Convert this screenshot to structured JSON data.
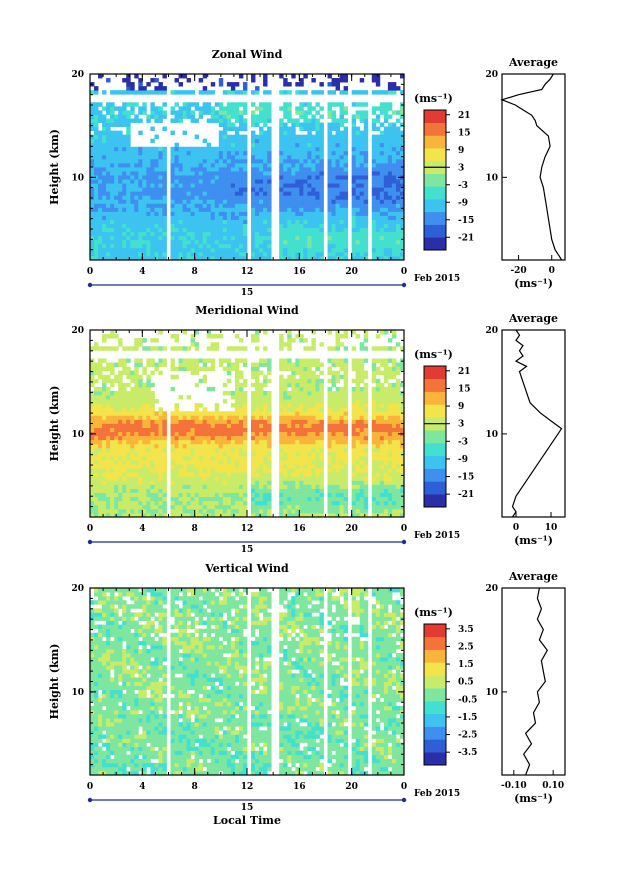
{
  "chart_data": [
    {
      "type": "heatmap",
      "title": "Zonal Wind",
      "ylabel": "Height (km)",
      "y_ticks": [
        "20",
        "10"
      ],
      "ylim": [
        2,
        20
      ],
      "x_ticks": [
        "0",
        "4",
        "8",
        "12",
        "16",
        "20",
        "0"
      ],
      "xlim": [
        0,
        24
      ],
      "date_axis": {
        "day": "15",
        "suffix": "Feb 2015"
      },
      "colorbar": {
        "unit": "(ms⁻¹)",
        "ticks": [
          "21",
          "15",
          "9",
          "3",
          "-3",
          "-9",
          "-15",
          "-21"
        ],
        "range": [
          -24,
          24
        ],
        "zero_tick": "3"
      },
      "average": {
        "title": "Average",
        "xlabel": "(ms⁻¹)",
        "x_ticks": [
          "-20",
          "0"
        ],
        "xlim": [
          -30,
          8
        ],
        "y_ticks": [
          "20",
          "10"
        ],
        "heights": [
          2,
          2.5,
          3,
          4,
          5,
          6,
          7,
          8,
          9,
          10,
          11,
          12,
          13,
          14,
          15,
          15.5,
          16,
          16.5,
          17,
          17.5,
          18,
          18.5,
          19,
          19.5,
          20
        ],
        "values": [
          6,
          4,
          2,
          0,
          -1,
          -2,
          -3,
          -4,
          -5,
          -7,
          -6,
          -4,
          -1,
          -2,
          -9,
          -10,
          -12,
          -17,
          -22,
          -30,
          -20,
          -6,
          -4,
          -1,
          1
        ]
      }
    },
    {
      "type": "heatmap",
      "title": "Meridional Wind",
      "ylabel": "Height (km)",
      "y_ticks": [
        "20",
        "10"
      ],
      "ylim": [
        2,
        20
      ],
      "x_ticks": [
        "0",
        "4",
        "8",
        "12",
        "16",
        "20",
        "0"
      ],
      "xlim": [
        0,
        24
      ],
      "date_axis": {
        "day": "15",
        "suffix": "Feb 2015"
      },
      "colorbar": {
        "unit": "(ms⁻¹)",
        "ticks": [
          "21",
          "15",
          "9",
          "3",
          "-3",
          "-9",
          "-15",
          "-21"
        ],
        "range": [
          -24,
          24
        ],
        "zero_tick": "3"
      },
      "average": {
        "title": "Average",
        "xlabel": "(ms⁻¹)",
        "x_ticks": [
          "0",
          "10"
        ],
        "xlim": [
          -4,
          14
        ],
        "y_ticks": [
          "20",
          "10"
        ],
        "heights": [
          2,
          2.5,
          3,
          4,
          5,
          6,
          7,
          8,
          9,
          10,
          10.5,
          11,
          12,
          13,
          14,
          15,
          16,
          16.5,
          17,
          17.5,
          18,
          18.5,
          19,
          19.5,
          20
        ],
        "values": [
          -1,
          0,
          -1,
          0,
          2,
          4,
          6,
          8,
          10,
          12,
          13,
          11,
          7,
          4,
          3,
          2,
          1,
          3,
          0,
          2,
          1,
          2,
          0,
          1,
          0
        ]
      }
    },
    {
      "type": "heatmap",
      "title": "Vertical Wind",
      "xlabel": "Local Time",
      "ylabel": "Height (km)",
      "y_ticks": [
        "20",
        "10"
      ],
      "ylim": [
        2,
        20
      ],
      "x_ticks": [
        "0",
        "4",
        "8",
        "12",
        "16",
        "20",
        "0"
      ],
      "xlim": [
        0,
        24
      ],
      "date_axis": {
        "day": "15",
        "suffix": "Feb 2015"
      },
      "colorbar": {
        "unit": "(ms⁻¹)",
        "ticks": [
          "3.5",
          "2.5",
          "1.5",
          "0.5",
          "-0.5",
          "-1.5",
          "-2.5",
          "-3.5"
        ],
        "range": [
          -4,
          4
        ],
        "zero_tick": ""
      },
      "average": {
        "title": "Average",
        "xlabel": "(ms⁻¹)",
        "x_ticks": [
          "-0.10",
          "0.10"
        ],
        "xlim": [
          -0.16,
          0.16
        ],
        "y_ticks": [
          "20",
          "10"
        ],
        "heights": [
          2,
          3,
          4,
          5,
          6,
          7,
          8,
          9,
          10,
          11,
          12,
          13,
          14,
          15,
          16,
          17,
          18,
          19,
          20
        ],
        "values": [
          -0.04,
          -0.02,
          -0.05,
          -0.01,
          -0.04,
          0.01,
          0.0,
          0.03,
          0.02,
          0.06,
          0.05,
          0.04,
          0.07,
          0.03,
          0.05,
          0.02,
          0.04,
          0.02,
          0.03
        ]
      }
    }
  ]
}
